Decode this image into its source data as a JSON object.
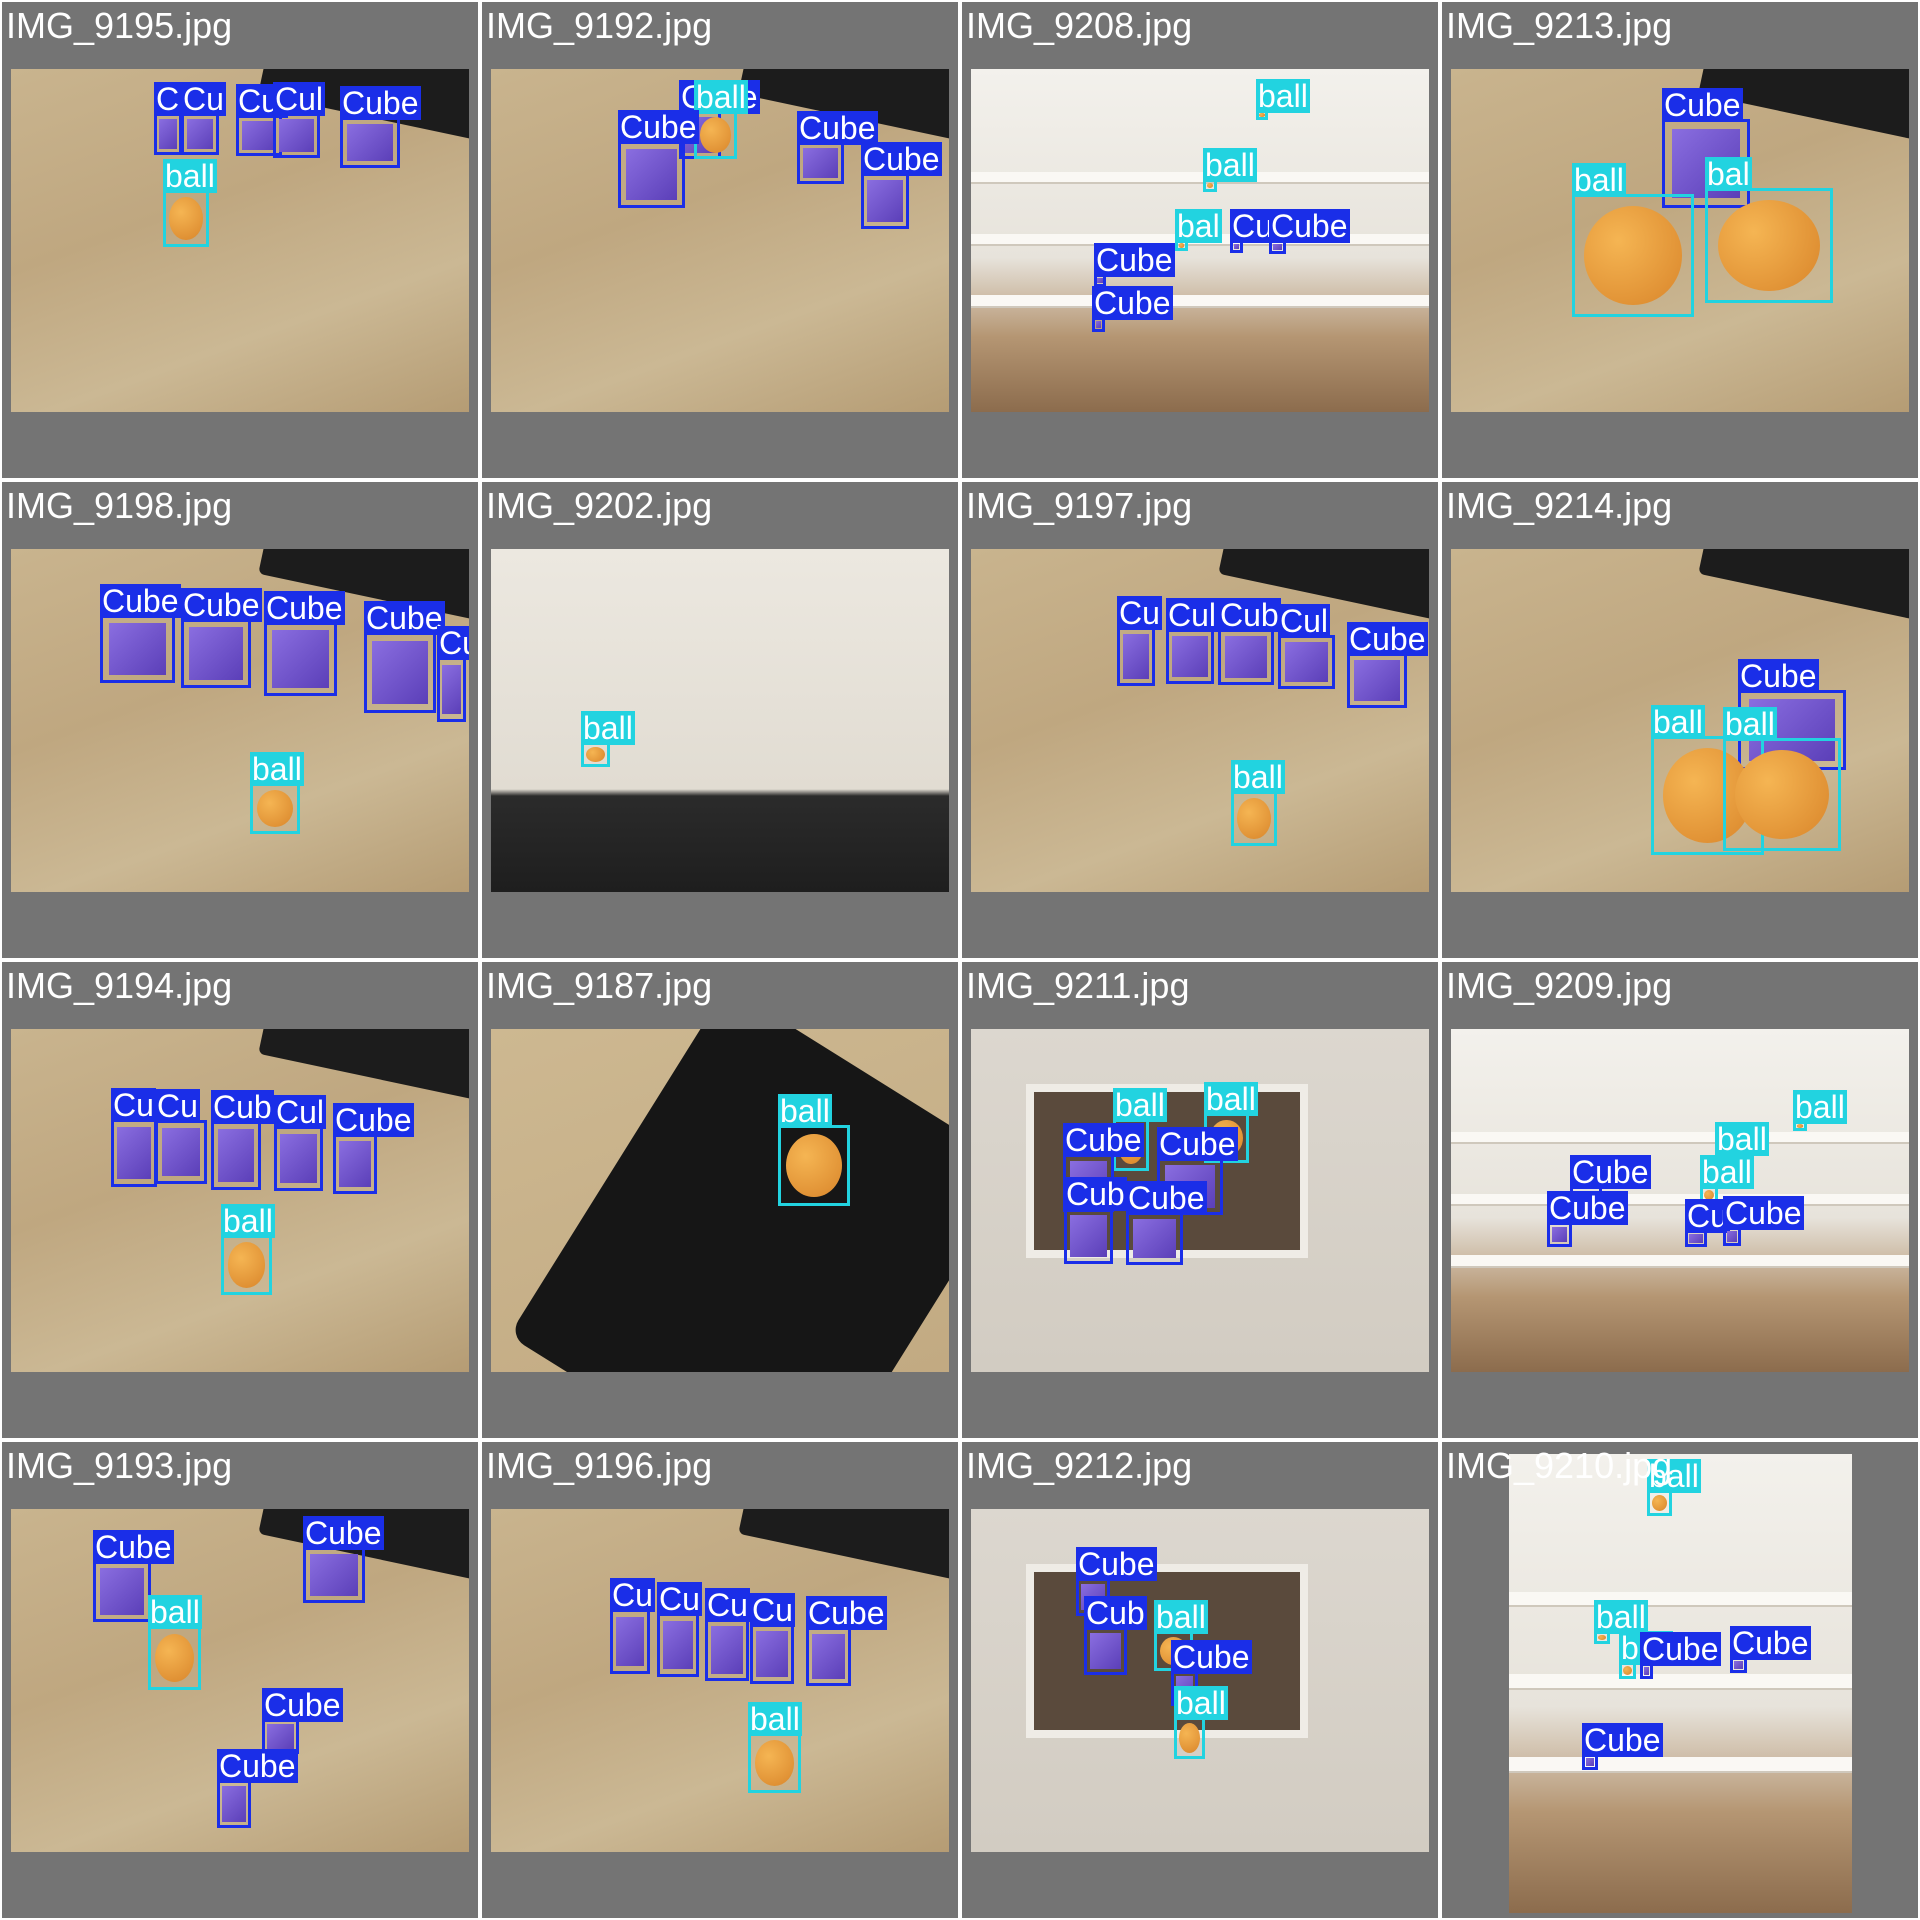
{
  "grid": {
    "columns": 4,
    "rows": 4
  },
  "colors": {
    "cube": "#1a2ee8",
    "ball": "#22d3e0",
    "tile_bg": "#747474"
  },
  "classes": {
    "cube": "Cube",
    "ball": "ball"
  },
  "tiles": [
    {
      "filename": "IMG_9195.jpg",
      "scene": "desk",
      "detections": [
        {
          "cls": "Cube",
          "label": "Cu"
        },
        {
          "cls": "Cube",
          "label": "Cu"
        },
        {
          "cls": "Cube",
          "label": "Cul"
        },
        {
          "cls": "Cube",
          "label": "Cul"
        },
        {
          "cls": "Cube",
          "label": "Cube"
        },
        {
          "cls": "ball",
          "label": "ball"
        }
      ]
    },
    {
      "filename": "IMG_9192.jpg",
      "scene": "desk",
      "detections": [
        {
          "cls": "Cube",
          "label": "Cube"
        },
        {
          "cls": "ball",
          "label": "ball"
        },
        {
          "cls": "Cube",
          "label": "Cube"
        },
        {
          "cls": "Cube",
          "label": "Cube"
        },
        {
          "cls": "Cube",
          "label": "Cube"
        }
      ]
    },
    {
      "filename": "IMG_9208.jpg",
      "scene": "shelf",
      "detections": [
        {
          "cls": "ball",
          "label": "ball"
        },
        {
          "cls": "ball",
          "label": "ball"
        },
        {
          "cls": "ball",
          "label": "bal"
        },
        {
          "cls": "Cube",
          "label": "Cul"
        },
        {
          "cls": "Cube",
          "label": "Cube"
        },
        {
          "cls": "Cube",
          "label": "Cube"
        },
        {
          "cls": "Cube",
          "label": "Cube"
        }
      ]
    },
    {
      "filename": "IMG_9213.jpg",
      "scene": "desk",
      "detections": [
        {
          "cls": "Cube",
          "label": "Cube"
        },
        {
          "cls": "ball",
          "label": "ball"
        },
        {
          "cls": "ball",
          "label": "bal"
        }
      ]
    },
    {
      "filename": "IMG_9198.jpg",
      "scene": "desk",
      "detections": [
        {
          "cls": "Cube",
          "label": "Cube"
        },
        {
          "cls": "Cube",
          "label": "Cube"
        },
        {
          "cls": "Cube",
          "label": "Cube"
        },
        {
          "cls": "Cube",
          "label": "Cube"
        },
        {
          "cls": "Cube",
          "label": "Cube"
        },
        {
          "cls": "ball",
          "label": "ball"
        }
      ]
    },
    {
      "filename": "IMG_9202.jpg",
      "scene": "wall",
      "detections": [
        {
          "cls": "ball",
          "label": "ball"
        }
      ]
    },
    {
      "filename": "IMG_9197.jpg",
      "scene": "desk",
      "detections": [
        {
          "cls": "Cube",
          "label": "Cu"
        },
        {
          "cls": "Cube",
          "label": "Cul"
        },
        {
          "cls": "Cube",
          "label": "Cub"
        },
        {
          "cls": "Cube",
          "label": "Cul"
        },
        {
          "cls": "Cube",
          "label": "Cube"
        },
        {
          "cls": "ball",
          "label": "ball"
        }
      ]
    },
    {
      "filename": "IMG_9214.jpg",
      "scene": "desk",
      "detections": [
        {
          "cls": "Cube",
          "label": "Cube"
        },
        {
          "cls": "ball",
          "label": "ball"
        },
        {
          "cls": "ball",
          "label": "ball"
        }
      ]
    },
    {
      "filename": "IMG_9194.jpg",
      "scene": "desk",
      "detections": [
        {
          "cls": "Cube",
          "label": "Cu"
        },
        {
          "cls": "Cube",
          "label": "Cu"
        },
        {
          "cls": "Cube",
          "label": "Cub"
        },
        {
          "cls": "Cube",
          "label": "Cul"
        },
        {
          "cls": "Cube",
          "label": "Cube"
        },
        {
          "cls": "ball",
          "label": "ball"
        }
      ]
    },
    {
      "filename": "IMG_9187.jpg",
      "scene": "keyboard",
      "detections": [
        {
          "cls": "ball",
          "label": "ball"
        }
      ]
    },
    {
      "filename": "IMG_9211.jpg",
      "scene": "box",
      "detections": [
        {
          "cls": "ball",
          "label": "ball"
        },
        {
          "cls": "ball",
          "label": "ball"
        },
        {
          "cls": "Cube",
          "label": "Cube"
        },
        {
          "cls": "Cube",
          "label": "Cube"
        },
        {
          "cls": "Cube",
          "label": "Cub"
        },
        {
          "cls": "Cube",
          "label": "Cube"
        }
      ]
    },
    {
      "filename": "IMG_9209.jpg",
      "scene": "shelf",
      "detections": [
        {
          "cls": "ball",
          "label": "ball"
        },
        {
          "cls": "ball",
          "label": "ball"
        },
        {
          "cls": "Cube",
          "label": "Cube"
        },
        {
          "cls": "ball",
          "label": "ball"
        },
        {
          "cls": "Cube",
          "label": "Cube"
        },
        {
          "cls": "Cube",
          "label": "Cu"
        },
        {
          "cls": "Cube",
          "label": "Cube"
        }
      ]
    },
    {
      "filename": "IMG_9193.jpg",
      "scene": "desk",
      "detections": [
        {
          "cls": "Cube",
          "label": "Cube"
        },
        {
          "cls": "Cube",
          "label": "Cube"
        },
        {
          "cls": "ball",
          "label": "ball"
        },
        {
          "cls": "Cube",
          "label": "Cube"
        },
        {
          "cls": "Cube",
          "label": "Cube"
        }
      ]
    },
    {
      "filename": "IMG_9196.jpg",
      "scene": "desk",
      "detections": [
        {
          "cls": "Cube",
          "label": "Cu"
        },
        {
          "cls": "Cube",
          "label": "Cu"
        },
        {
          "cls": "Cube",
          "label": "Cu"
        },
        {
          "cls": "Cube",
          "label": "Cu"
        },
        {
          "cls": "Cube",
          "label": "Cube"
        },
        {
          "cls": "ball",
          "label": "ball"
        }
      ]
    },
    {
      "filename": "IMG_9212.jpg",
      "scene": "box",
      "detections": [
        {
          "cls": "Cube",
          "label": "Cube"
        },
        {
          "cls": "Cube",
          "label": "Cub"
        },
        {
          "cls": "ball",
          "label": "ball"
        },
        {
          "cls": "Cube",
          "label": "Cube"
        },
        {
          "cls": "ball",
          "label": "ball"
        }
      ]
    },
    {
      "filename": "IMG_9210.jpg",
      "scene": "shelf",
      "portrait": true,
      "detections": [
        {
          "cls": "ball",
          "label": "ball"
        },
        {
          "cls": "ball",
          "label": "ball"
        },
        {
          "cls": "ball",
          "label": "ball"
        },
        {
          "cls": "Cube",
          "label": "Cube"
        },
        {
          "cls": "Cube",
          "label": "Cube"
        },
        {
          "cls": "Cube",
          "label": "Cube"
        }
      ]
    }
  ]
}
